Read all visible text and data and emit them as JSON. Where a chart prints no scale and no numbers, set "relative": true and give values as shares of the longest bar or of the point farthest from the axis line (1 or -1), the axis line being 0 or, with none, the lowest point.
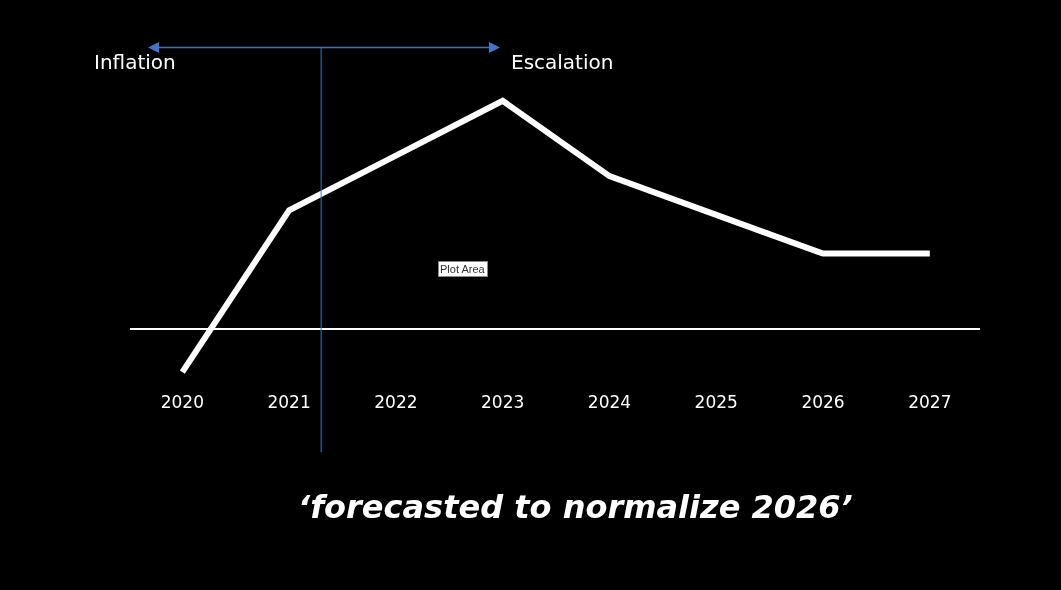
{
  "chart_data": {
    "type": "line",
    "relative": true,
    "x": [
      2020,
      2021,
      2022,
      2023,
      2024,
      2025,
      2026,
      2027
    ],
    "xlim": [
      2019.51,
      2027.47
    ],
    "xticks": [
      2020,
      2021,
      2022,
      2023,
      2024,
      2025,
      2026,
      2027
    ],
    "series": [
      {
        "color": "#ffffff",
        "values": [
          -0.19,
          0.52,
          0.76,
          1,
          0.67,
          0.5,
          0.33,
          0.33
        ]
      }
    ],
    "ref_lines": [
      {
        "axis": "x",
        "value": 2021.3,
        "color": "#4472c4"
      }
    ],
    "annotations": [
      "Inflation",
      "Escalation",
      "Plot Area",
      "‘forecasted to normalize 2026’"
    ],
    "grid": false,
    "marker": "none",
    "line_style": "solid"
  }
}
